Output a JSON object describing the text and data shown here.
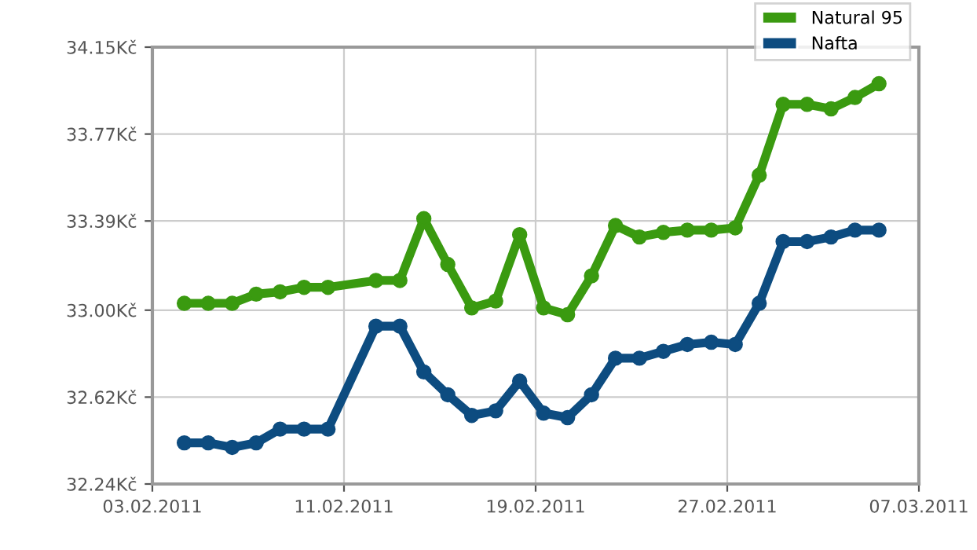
{
  "chart_data": {
    "type": "line",
    "x": [
      "2011-02-04T08:00",
      "2011-02-05T08:00",
      "2011-02-06T08:00",
      "2011-02-07T08:00",
      "2011-02-08T08:00",
      "2011-02-09T08:00",
      "2011-02-10T08:00",
      "2011-02-12T08:00",
      "2011-02-13T08:00",
      "2011-02-14T08:00",
      "2011-02-15T08:00",
      "2011-02-16T08:00",
      "2011-02-17T08:00",
      "2011-02-18T08:00",
      "2011-02-19T08:00",
      "2011-02-20T08:00",
      "2011-02-21T08:00",
      "2011-02-22T08:00",
      "2011-02-23T08:00",
      "2011-02-24T08:00",
      "2011-02-25T08:00",
      "2011-02-26T08:00",
      "2011-02-27T08:00",
      "2011-02-28T08:00",
      "2011-03-01T08:00",
      "2011-03-02T08:00",
      "2011-03-03T08:00",
      "2011-03-04T08:00",
      "2011-03-05T08:00"
    ],
    "series": [
      {
        "name": "Natural 95",
        "color": "#3a9a10",
        "values": [
          33.03,
          33.03,
          33.03,
          33.07,
          33.08,
          33.1,
          33.1,
          33.13,
          33.13,
          33.4,
          33.2,
          33.01,
          33.04,
          33.33,
          33.01,
          32.98,
          33.15,
          33.37,
          33.32,
          33.34,
          33.35,
          33.35,
          33.36,
          33.59,
          33.9,
          33.9,
          33.88,
          33.93,
          33.99
        ]
      },
      {
        "name": "Nafta",
        "color": "#0d4c80",
        "values": [
          32.42,
          32.42,
          32.4,
          32.42,
          32.48,
          32.48,
          32.48,
          32.93,
          32.93,
          32.73,
          32.63,
          32.54,
          32.56,
          32.69,
          32.55,
          32.53,
          32.63,
          32.79,
          32.79,
          32.82,
          32.85,
          32.86,
          32.85,
          33.03,
          33.3,
          33.3,
          33.32,
          33.35,
          33.35
        ]
      }
    ],
    "xlim": [
      "2011-02-03",
      "2011-03-07"
    ],
    "xticks": [
      {
        "value": "2011-02-03",
        "label": "03.02.2011"
      },
      {
        "value": "2011-02-11",
        "label": "11.02.2011"
      },
      {
        "value": "2011-02-19",
        "label": "19.02.2011"
      },
      {
        "value": "2011-02-27",
        "label": "27.02.2011"
      },
      {
        "value": "2011-03-07",
        "label": "07.03.2011"
      }
    ],
    "ylim": [
      32.24,
      34.15
    ],
    "yticks": [
      {
        "value": 32.24,
        "label": "32.24Kč"
      },
      {
        "value": 32.62,
        "label": "32.62Kč"
      },
      {
        "value": 33.0,
        "label": "33.00Kč"
      },
      {
        "value": 33.39,
        "label": "33.39Kč"
      },
      {
        "value": 33.77,
        "label": "33.77Kč"
      },
      {
        "value": 34.15,
        "label": "34.15Kč"
      }
    ],
    "grid": true,
    "legend": "top right",
    "marker": "circle",
    "line_style": "solid"
  }
}
